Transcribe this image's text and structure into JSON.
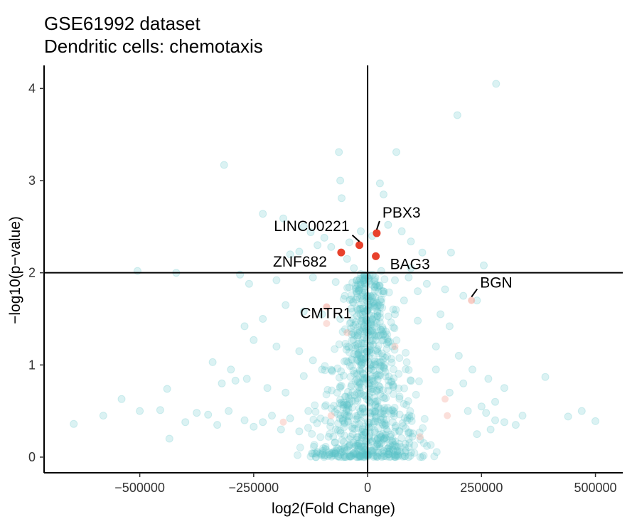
{
  "chart_data": {
    "type": "scatter",
    "title": "GSE61992 dataset",
    "subtitle": "Dendritic cells: chemotaxis",
    "xlabel": "log2(Fold Change)",
    "ylabel": "−log10(p−value)",
    "xlim": [
      -710000,
      560000
    ],
    "ylim": [
      -0.17,
      4.25
    ],
    "xticks": [
      -500000,
      -250000,
      0,
      250000,
      500000
    ],
    "xtick_labels": [
      "−500000",
      "−250000",
      "0",
      "250000",
      "500000"
    ],
    "yticks": [
      0,
      1,
      2,
      3,
      4
    ],
    "ytick_labels": [
      "0",
      "1",
      "2",
      "3",
      "4"
    ],
    "reference_lines": {
      "x": 0,
      "y": 2
    },
    "grid": false,
    "colors": {
      "background_points": "#5bc5c8",
      "highlight_points": "#e8412c",
      "faded_highlight": "#f4a394"
    },
    "highlighted_genes": [
      {
        "label": "PBX3",
        "x": 20000,
        "y": 2.43
      },
      {
        "label": "LINC00221",
        "x": -18000,
        "y": 2.3
      },
      {
        "label": "ZNF682",
        "x": -58000,
        "y": 2.22
      },
      {
        "label": "BAG3",
        "x": 18000,
        "y": 2.18
      },
      {
        "label": "BGN",
        "x": 228000,
        "y": 1.7
      },
      {
        "label": "CMTR1",
        "x": -90000,
        "y": 1.63
      }
    ],
    "points": [
      [
        282000,
        4.05
      ],
      [
        197000,
        3.71
      ],
      [
        -315000,
        3.17
      ],
      [
        -63000,
        3.31
      ],
      [
        63000,
        3.31
      ],
      [
        -60000,
        3.0
      ],
      [
        -57000,
        2.81
      ],
      [
        27000,
        2.97
      ],
      [
        35000,
        2.85
      ],
      [
        -230000,
        2.64
      ],
      [
        -185000,
        2.59
      ],
      [
        -140000,
        2.5
      ],
      [
        -125000,
        2.44
      ],
      [
        -95000,
        2.38
      ],
      [
        -110000,
        2.3
      ],
      [
        -150000,
        2.23
      ],
      [
        -170000,
        2.2
      ],
      [
        -80000,
        2.28
      ],
      [
        -40000,
        2.33
      ],
      [
        45000,
        2.52
      ],
      [
        75000,
        2.45
      ],
      [
        95000,
        2.34
      ],
      [
        120000,
        2.22
      ],
      [
        183000,
        2.22
      ],
      [
        255000,
        2.08
      ],
      [
        -505000,
        2.02
      ],
      [
        -420000,
        2.0
      ],
      [
        -280000,
        1.98
      ],
      [
        -260000,
        1.88
      ],
      [
        -200000,
        1.92
      ],
      [
        -120000,
        1.95
      ],
      [
        -70000,
        1.9
      ],
      [
        -30000,
        2.05
      ],
      [
        30000,
        2.02
      ],
      [
        60000,
        1.92
      ],
      [
        90000,
        1.95
      ],
      [
        130000,
        1.88
      ],
      [
        170000,
        1.82
      ],
      [
        210000,
        1.75
      ],
      [
        240000,
        1.7
      ],
      [
        -180000,
        1.65
      ],
      [
        -140000,
        1.58
      ],
      [
        -100000,
        1.55
      ],
      [
        -60000,
        1.5
      ],
      [
        60000,
        1.55
      ],
      [
        110000,
        1.48
      ],
      [
        160000,
        1.55
      ],
      [
        180000,
        1.42
      ],
      [
        -230000,
        1.5
      ],
      [
        -270000,
        1.42
      ],
      [
        -250000,
        1.27
      ],
      [
        -200000,
        1.2
      ],
      [
        -150000,
        1.15
      ],
      [
        -120000,
        1.05
      ],
      [
        -300000,
        0.95
      ],
      [
        -340000,
        1.03
      ],
      [
        -290000,
        0.83
      ],
      [
        -320000,
        0.8
      ],
      [
        -265000,
        0.85
      ],
      [
        -220000,
        0.75
      ],
      [
        -180000,
        0.7
      ],
      [
        -140000,
        0.88
      ],
      [
        -100000,
        0.95
      ],
      [
        150000,
        1.2
      ],
      [
        200000,
        1.1
      ],
      [
        230000,
        0.95
      ],
      [
        265000,
        0.85
      ],
      [
        210000,
        0.8
      ],
      [
        180000,
        0.7
      ],
      [
        150000,
        0.95
      ],
      [
        390000,
        0.87
      ],
      [
        300000,
        0.75
      ],
      [
        280000,
        0.6
      ],
      [
        250000,
        0.55
      ],
      [
        220000,
        0.5
      ],
      [
        -440000,
        0.74
      ],
      [
        -540000,
        0.63
      ],
      [
        -580000,
        0.45
      ],
      [
        -500000,
        0.5
      ],
      [
        -455000,
        0.51
      ],
      [
        -645000,
        0.36
      ],
      [
        -435000,
        0.2
      ],
      [
        -400000,
        0.38
      ],
      [
        -375000,
        0.48
      ],
      [
        -350000,
        0.46
      ],
      [
        -330000,
        0.35
      ],
      [
        -305000,
        0.5
      ],
      [
        -270000,
        0.4
      ],
      [
        -250000,
        0.33
      ],
      [
        -230000,
        0.38
      ],
      [
        -210000,
        0.45
      ],
      [
        -190000,
        0.3
      ],
      [
        -170000,
        0.42
      ],
      [
        -150000,
        0.28
      ],
      [
        -130000,
        0.5
      ],
      [
        340000,
        0.45
      ],
      [
        325000,
        0.35
      ],
      [
        300000,
        0.38
      ],
      [
        280000,
        0.4
      ],
      [
        270000,
        0.3
      ],
      [
        440000,
        0.44
      ],
      [
        470000,
        0.5
      ],
      [
        500000,
        0.39
      ],
      [
        260000,
        0.48
      ],
      [
        240000,
        0.25
      ],
      [
        110000,
        1.8
      ],
      [
        80000,
        1.7
      ],
      [
        -50000,
        1.75
      ],
      [
        -20000,
        1.8
      ],
      [
        15000,
        1.85
      ],
      [
        95000,
        2.05
      ],
      [
        -45000,
        2.15
      ],
      [
        -15000,
        2.45
      ],
      [
        10000,
        2.4
      ]
    ]
  }
}
